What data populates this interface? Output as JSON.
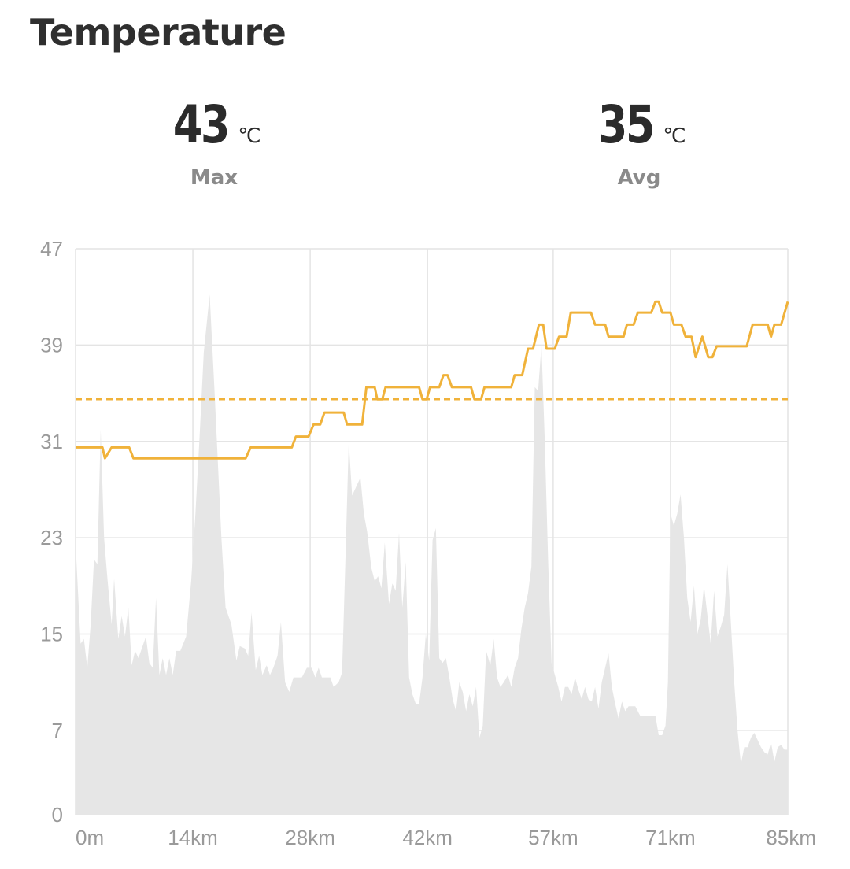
{
  "title": "Temperature",
  "stats": {
    "max": {
      "value": "43",
      "unit": "℃",
      "label": "Max"
    },
    "avg": {
      "value": "35",
      "unit": "℃",
      "label": "Avg"
    }
  },
  "colors": {
    "temperature_line": "#f0b23a",
    "average_line": "#f0b23a",
    "area_fill": "#e6e6e6",
    "grid": "#e4e4e4",
    "tick_text": "#9a9a9a"
  },
  "chart_data": {
    "type": "line",
    "title": "Temperature",
    "xlabel": "",
    "ylabel": "",
    "y_ticks": [
      0,
      7,
      15,
      23,
      31,
      39,
      47
    ],
    "ylim": [
      0,
      47
    ],
    "x_tick_labels": [
      "0m",
      "14km",
      "28km",
      "42km",
      "57km",
      "71km",
      "85km"
    ],
    "x_tick_values": [
      0,
      14,
      28,
      42,
      57,
      71,
      85
    ],
    "xlim": [
      0,
      85
    ],
    "grid": true,
    "average_line": 34.5,
    "series": [
      {
        "role": "temperature",
        "style": "line",
        "points": [
          [
            0,
            30.5
          ],
          [
            3.2,
            30.5
          ],
          [
            3.5,
            29.6
          ],
          [
            4.3,
            30.5
          ],
          [
            6.4,
            30.5
          ],
          [
            6.9,
            29.6
          ],
          [
            20.3,
            29.6
          ],
          [
            20.9,
            30.5
          ],
          [
            25.8,
            30.5
          ],
          [
            26.3,
            31.4
          ],
          [
            27.8,
            31.4
          ],
          [
            28.4,
            32.4
          ],
          [
            29.2,
            32.4
          ],
          [
            29.7,
            33.4
          ],
          [
            32.0,
            33.4
          ],
          [
            32.4,
            32.4
          ],
          [
            34.2,
            32.4
          ],
          [
            34.7,
            35.5
          ],
          [
            35.7,
            35.5
          ],
          [
            36.0,
            34.5
          ],
          [
            36.6,
            34.5
          ],
          [
            37.0,
            35.5
          ],
          [
            41.0,
            35.5
          ],
          [
            41.4,
            34.5
          ],
          [
            41.9,
            34.5
          ],
          [
            42.3,
            35.5
          ],
          [
            43.4,
            35.5
          ],
          [
            43.9,
            36.5
          ],
          [
            44.4,
            36.5
          ],
          [
            44.9,
            35.5
          ],
          [
            47.2,
            35.5
          ],
          [
            47.6,
            34.5
          ],
          [
            48.4,
            34.5
          ],
          [
            48.8,
            35.5
          ],
          [
            52.0,
            35.5
          ],
          [
            52.4,
            36.5
          ],
          [
            53.3,
            36.5
          ],
          [
            54.0,
            38.7
          ],
          [
            54.6,
            38.7
          ],
          [
            55.3,
            40.7
          ],
          [
            55.8,
            40.7
          ],
          [
            56.2,
            38.7
          ],
          [
            57.2,
            38.7
          ],
          [
            57.7,
            39.7
          ],
          [
            58.6,
            39.7
          ],
          [
            59.1,
            41.7
          ],
          [
            61.5,
            41.7
          ],
          [
            62.0,
            40.7
          ],
          [
            63.2,
            40.7
          ],
          [
            63.6,
            39.7
          ],
          [
            65.4,
            39.7
          ],
          [
            65.8,
            40.7
          ],
          [
            66.6,
            40.7
          ],
          [
            67.1,
            41.7
          ],
          [
            68.7,
            41.7
          ],
          [
            69.2,
            42.6
          ],
          [
            69.6,
            42.6
          ],
          [
            70.0,
            41.7
          ],
          [
            71.0,
            41.7
          ],
          [
            71.4,
            40.7
          ],
          [
            72.3,
            40.7
          ],
          [
            72.8,
            39.7
          ],
          [
            73.5,
            39.7
          ],
          [
            74.0,
            38.0
          ],
          [
            74.8,
            39.7
          ],
          [
            75.5,
            38.0
          ],
          [
            76.0,
            38.0
          ],
          [
            76.5,
            38.9
          ],
          [
            80.1,
            38.9
          ],
          [
            80.8,
            40.7
          ],
          [
            82.6,
            40.7
          ],
          [
            83.0,
            39.7
          ],
          [
            83.4,
            40.7
          ],
          [
            84.2,
            40.7
          ],
          [
            85.0,
            42.6
          ]
        ]
      },
      {
        "role": "background-profile",
        "style": "area",
        "points": [
          [
            0,
            22.5
          ],
          [
            0.6,
            14.2
          ],
          [
            1.0,
            14.6
          ],
          [
            1.4,
            12.2
          ],
          [
            1.8,
            15.8
          ],
          [
            2.2,
            21.2
          ],
          [
            2.6,
            20.8
          ],
          [
            3.0,
            32.0
          ],
          [
            3.4,
            23.0
          ],
          [
            3.8,
            19.6
          ],
          [
            4.3,
            15.8
          ],
          [
            4.6,
            19.6
          ],
          [
            5.1,
            14.6
          ],
          [
            5.5,
            16.5
          ],
          [
            5.9,
            14.8
          ],
          [
            6.3,
            17.2
          ],
          [
            6.7,
            12.4
          ],
          [
            7.1,
            13.6
          ],
          [
            7.5,
            13.0
          ],
          [
            8.0,
            14.0
          ],
          [
            8.4,
            14.8
          ],
          [
            8.8,
            12.6
          ],
          [
            9.2,
            12.2
          ],
          [
            9.6,
            18.0
          ],
          [
            10.0,
            11.6
          ],
          [
            10.4,
            13.0
          ],
          [
            10.8,
            11.6
          ],
          [
            11.2,
            13.0
          ],
          [
            11.6,
            11.6
          ],
          [
            12.0,
            13.6
          ],
          [
            12.5,
            13.6
          ],
          [
            13.2,
            14.8
          ],
          [
            13.8,
            19.4
          ],
          [
            14.3,
            25.0
          ],
          [
            14.8,
            31.4
          ],
          [
            15.3,
            38.4
          ],
          [
            16.0,
            43.2
          ],
          [
            16.6,
            35.0
          ],
          [
            17.4,
            23.0
          ],
          [
            17.9,
            17.2
          ],
          [
            18.6,
            15.8
          ],
          [
            19.2,
            12.8
          ],
          [
            19.6,
            14.0
          ],
          [
            20.2,
            13.8
          ],
          [
            20.6,
            13.2
          ],
          [
            21.0,
            16.8
          ],
          [
            21.5,
            12.0
          ],
          [
            21.9,
            13.2
          ],
          [
            22.3,
            11.6
          ],
          [
            22.8,
            12.4
          ],
          [
            23.2,
            11.6
          ],
          [
            23.6,
            12.2
          ],
          [
            24.1,
            13.2
          ],
          [
            24.5,
            16.0
          ],
          [
            25.0,
            11.0
          ],
          [
            25.5,
            10.2
          ],
          [
            26.0,
            11.4
          ],
          [
            27.0,
            11.4
          ],
          [
            27.6,
            12.2
          ],
          [
            28.2,
            12.2
          ],
          [
            28.6,
            11.4
          ],
          [
            29.0,
            12.2
          ],
          [
            29.4,
            11.4
          ],
          [
            30.4,
            11.4
          ],
          [
            30.8,
            10.6
          ],
          [
            31.4,
            11.0
          ],
          [
            31.8,
            11.8
          ],
          [
            32.2,
            21.0
          ],
          [
            32.6,
            31.0
          ],
          [
            33.0,
            26.5
          ],
          [
            33.6,
            27.4
          ],
          [
            34.0,
            28.0
          ],
          [
            34.4,
            25.0
          ],
          [
            34.8,
            23.5
          ],
          [
            35.3,
            20.5
          ],
          [
            35.7,
            19.4
          ],
          [
            36.1,
            19.8
          ],
          [
            36.5,
            18.8
          ],
          [
            36.9,
            22.6
          ],
          [
            37.4,
            17.5
          ],
          [
            37.8,
            19.2
          ],
          [
            38.2,
            18.6
          ],
          [
            38.6,
            23.4
          ],
          [
            39.0,
            17.2
          ],
          [
            39.4,
            21.0
          ],
          [
            39.8,
            11.4
          ],
          [
            40.2,
            10.0
          ],
          [
            40.6,
            9.2
          ],
          [
            41.0,
            9.2
          ],
          [
            41.4,
            11.4
          ],
          [
            41.8,
            15.0
          ],
          [
            42.2,
            12.8
          ],
          [
            42.6,
            22.8
          ],
          [
            43.0,
            23.8
          ],
          [
            43.4,
            13.0
          ],
          [
            43.8,
            12.6
          ],
          [
            44.2,
            13.0
          ],
          [
            44.6,
            11.4
          ],
          [
            45.0,
            9.6
          ],
          [
            45.4,
            8.6
          ],
          [
            45.8,
            11.0
          ],
          [
            46.2,
            10.2
          ],
          [
            46.6,
            8.6
          ],
          [
            47.0,
            10.0
          ],
          [
            47.4,
            9.0
          ],
          [
            47.8,
            10.6
          ],
          [
            48.2,
            6.4
          ],
          [
            48.6,
            7.4
          ],
          [
            49.0,
            13.6
          ],
          [
            49.5,
            12.4
          ],
          [
            49.9,
            14.6
          ],
          [
            50.3,
            11.4
          ],
          [
            50.7,
            10.6
          ],
          [
            51.1,
            11.0
          ],
          [
            51.6,
            11.6
          ],
          [
            52.0,
            10.6
          ],
          [
            52.4,
            12.2
          ],
          [
            52.8,
            13.0
          ],
          [
            53.2,
            15.4
          ],
          [
            53.6,
            17.2
          ],
          [
            54.0,
            18.4
          ],
          [
            54.4,
            20.6
          ],
          [
            54.8,
            35.5
          ],
          [
            55.2,
            35.2
          ],
          [
            55.6,
            39.0
          ],
          [
            56.0,
            31.0
          ],
          [
            56.4,
            21.0
          ],
          [
            56.8,
            12.6
          ],
          [
            57.2,
            11.6
          ],
          [
            57.6,
            10.6
          ],
          [
            58.0,
            9.4
          ],
          [
            58.4,
            10.6
          ],
          [
            58.8,
            10.6
          ],
          [
            59.2,
            10.0
          ],
          [
            59.6,
            11.4
          ],
          [
            60.0,
            10.4
          ],
          [
            60.4,
            9.6
          ],
          [
            60.8,
            10.6
          ],
          [
            61.2,
            9.6
          ],
          [
            61.6,
            9.4
          ],
          [
            62.0,
            10.6
          ],
          [
            62.4,
            8.8
          ],
          [
            62.8,
            11.0
          ],
          [
            63.2,
            12.2
          ],
          [
            63.6,
            13.4
          ],
          [
            64.0,
            10.6
          ],
          [
            64.4,
            9.2
          ],
          [
            64.8,
            8.0
          ],
          [
            65.2,
            9.4
          ],
          [
            65.6,
            8.6
          ],
          [
            66.0,
            9.0
          ],
          [
            66.8,
            9.0
          ],
          [
            67.4,
            8.2
          ],
          [
            69.2,
            8.2
          ],
          [
            69.6,
            6.6
          ],
          [
            70.0,
            6.6
          ],
          [
            70.4,
            7.4
          ],
          [
            70.7,
            11.0
          ],
          [
            71.0,
            25.0
          ],
          [
            71.4,
            24.0
          ],
          [
            71.8,
            25.0
          ],
          [
            72.2,
            26.6
          ],
          [
            72.6,
            23.0
          ],
          [
            73.0,
            18.0
          ],
          [
            73.4,
            16.0
          ],
          [
            73.8,
            19.0
          ],
          [
            74.2,
            15.0
          ],
          [
            74.6,
            16.2
          ],
          [
            75.0,
            19.0
          ],
          [
            75.4,
            16.6
          ],
          [
            75.8,
            14.2
          ],
          [
            76.2,
            18.6
          ],
          [
            76.6,
            14.8
          ],
          [
            77.0,
            15.6
          ],
          [
            77.4,
            16.6
          ],
          [
            77.8,
            20.8
          ],
          [
            78.2,
            16.0
          ],
          [
            78.6,
            11.0
          ],
          [
            79.0,
            7.0
          ],
          [
            79.4,
            4.2
          ],
          [
            79.8,
            5.6
          ],
          [
            80.2,
            5.6
          ],
          [
            80.6,
            6.4
          ],
          [
            81.0,
            6.8
          ],
          [
            81.4,
            6.2
          ],
          [
            81.8,
            5.6
          ],
          [
            82.2,
            5.2
          ],
          [
            82.6,
            5.0
          ],
          [
            83.0,
            6.0
          ],
          [
            83.4,
            4.4
          ],
          [
            83.8,
            5.6
          ],
          [
            84.2,
            5.8
          ],
          [
            84.6,
            5.4
          ],
          [
            85.0,
            5.4
          ]
        ]
      }
    ]
  }
}
